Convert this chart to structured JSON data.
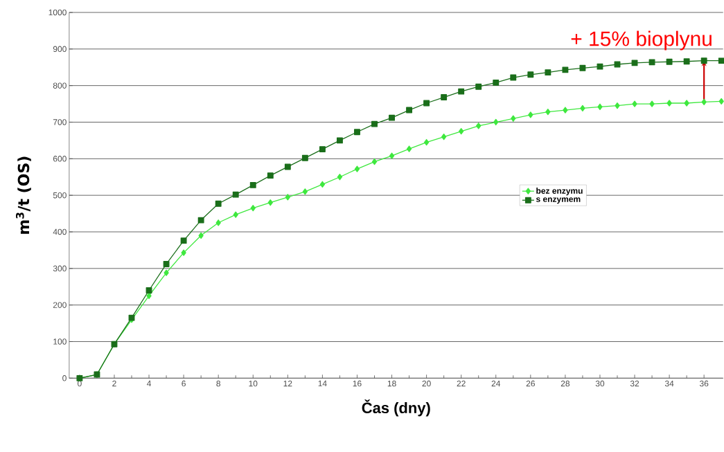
{
  "chart_data": {
    "type": "line",
    "xlabel": "Čas (dny)",
    "ylabel": "m$^{3}$/t (OS)",
    "x": [
      0,
      1,
      2,
      3,
      4,
      5,
      6,
      7,
      8,
      9,
      10,
      11,
      12,
      13,
      14,
      15,
      16,
      17,
      18,
      19,
      20,
      21,
      22,
      23,
      24,
      25,
      26,
      27,
      28,
      29,
      30,
      31,
      32,
      33,
      34,
      35,
      36,
      37
    ],
    "series": [
      {
        "name": "bez enzymu",
        "color": "#3ee83e",
        "marker": "diamond",
        "values": [
          0,
          10,
          93,
          160,
          225,
          288,
          343,
          390,
          425,
          447,
          465,
          480,
          495,
          510,
          530,
          550,
          572,
          592,
          608,
          627,
          645,
          660,
          675,
          690,
          700,
          710,
          720,
          728,
          733,
          738,
          742,
          745,
          750,
          750,
          752,
          752,
          755,
          757
        ]
      },
      {
        "name": "s enzymem",
        "color": "#1a6e1a",
        "marker": "square",
        "values": [
          0,
          10,
          93,
          165,
          240,
          312,
          376,
          432,
          477,
          502,
          528,
          554,
          578,
          602,
          626,
          650,
          673,
          695,
          712,
          733,
          752,
          768,
          784,
          797,
          808,
          822,
          830,
          836,
          843,
          848,
          852,
          858,
          862,
          864,
          865,
          866,
          868,
          868
        ]
      }
    ],
    "xlim": [
      -0.6,
      37.1
    ],
    "ylim": [
      0,
      1000
    ],
    "xticks": [
      0,
      2,
      4,
      6,
      8,
      10,
      12,
      14,
      16,
      18,
      20,
      22,
      24,
      26,
      28,
      30,
      32,
      34,
      36
    ],
    "yticks": [
      0,
      100,
      200,
      300,
      400,
      500,
      600,
      700,
      800,
      900,
      1000
    ],
    "grid": "y",
    "legend": "right",
    "annotations": [
      {
        "text": "+ 15% bioplynu",
        "x": 36,
        "y": 868
      }
    ]
  }
}
